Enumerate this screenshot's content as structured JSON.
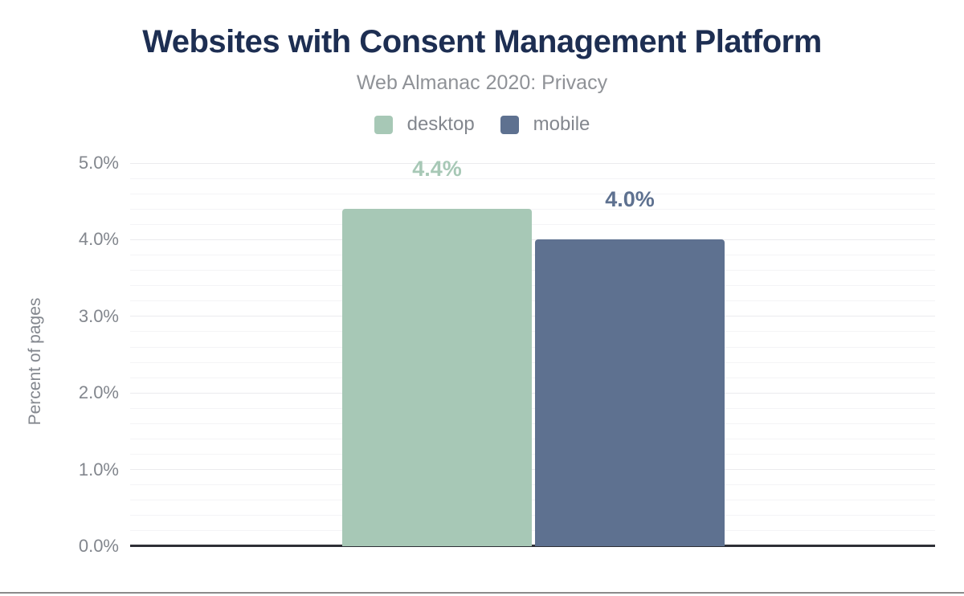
{
  "header": {
    "title": "Websites with Consent Management Platform",
    "subtitle": "Web Almanac 2020: Privacy"
  },
  "legend": {
    "items": [
      {
        "label": "desktop",
        "color": "#a7c8b6"
      },
      {
        "label": "mobile",
        "color": "#5e7190"
      }
    ]
  },
  "chart_data": {
    "type": "bar",
    "title": "Websites with Consent Management Platform",
    "subtitle": "Web Almanac 2020: Privacy",
    "xlabel": "",
    "ylabel": "Percent of pages",
    "ylim": [
      0,
      5
    ],
    "grid": true,
    "legend_position": "top",
    "y_minor_tick_interval": 0.2,
    "y_ticks": [
      {
        "value": 0,
        "label": "0.0%"
      },
      {
        "value": 1,
        "label": "1.0%"
      },
      {
        "value": 2,
        "label": "2.0%"
      },
      {
        "value": 3,
        "label": "3.0%"
      },
      {
        "value": 4,
        "label": "4.0%"
      },
      {
        "value": 5,
        "label": "5.0%"
      }
    ],
    "series": [
      {
        "name": "desktop",
        "value": 4.4,
        "label": "4.4%",
        "color": "#a7c8b6"
      },
      {
        "name": "mobile",
        "value": 4.0,
        "label": "4.0%",
        "color": "#5e7190"
      }
    ]
  },
  "colors": {
    "title": "#1d2e52",
    "subtitle": "#8f9297",
    "axis_text": "#82868d",
    "axis_line": "#2e2f36",
    "gridline_major": "#ebebee",
    "gridline_minor": "#f4f4f6",
    "bottom_divider": "#8b8b8b"
  }
}
